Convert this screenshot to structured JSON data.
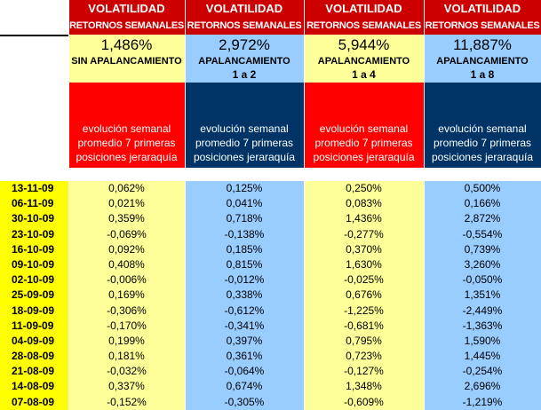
{
  "headers": [
    {
      "vol": "VOLATILIDAD",
      "ret": "RETORNOS SEMANALES",
      "pct": "1,486%",
      "label": "SIN APALANCAMIENTO",
      "sub": "",
      "evo1": "evolución semanal",
      "evo2": "promedio 7 primeras",
      "evo3": "posiciones jeraraquía"
    },
    {
      "vol": "VOLATILIDAD",
      "ret": "RETORNOS SEMANALES",
      "pct": "2,972%",
      "label": "APALANCAMIENTO",
      "sub": "1 a 2",
      "evo1": "evolución semanal",
      "evo2": "promedio 7 primeras",
      "evo3": "posiciones jeraraquía"
    },
    {
      "vol": "VOLATILIDAD",
      "ret": "RETORNOS SEMANALES",
      "pct": "5,944%",
      "label": "APALANCAMIENTO",
      "sub": "1 a 4",
      "evo1": "evolución semanal",
      "evo2": "promedio 7 primeras",
      "evo3": "posiciones jeraraquía"
    },
    {
      "vol": "VOLATILIDAD",
      "ret": "RETORNOS SEMANALES",
      "pct": "11,887%",
      "label": "APALANCAMIENTO",
      "sub": "1 a 8",
      "evo1": "evolución semanal",
      "evo2": "promedio 7 primeras",
      "evo3": "posiciones jeraraquía"
    }
  ],
  "dates": [
    "13-11-09",
    "06-11-09",
    "30-10-09",
    "23-10-09",
    "16-10-09",
    "09-10-09",
    "02-10-09",
    "25-09-09",
    "18-09-09",
    "11-09-09",
    "04-09-09",
    "28-08-09",
    "21-08-09",
    "14-08-09",
    "07-08-09"
  ],
  "columns": [
    [
      "0,062%",
      "0,021%",
      "0,359%",
      "-0,069%",
      "0,092%",
      "0,408%",
      "-0,006%",
      "0,169%",
      "-0,306%",
      "-0,170%",
      "0,199%",
      "0,181%",
      "-0,032%",
      "0,337%",
      "-0,152%"
    ],
    [
      "0,125%",
      "0,041%",
      "0,718%",
      "-0,138%",
      "0,185%",
      "0,815%",
      "-0,012%",
      "0,338%",
      "-0,612%",
      "-0,341%",
      "0,397%",
      "0,361%",
      "-0,064%",
      "0,674%",
      "-0,305%"
    ],
    [
      "0,250%",
      "0,083%",
      "1,436%",
      "-0,277%",
      "0,370%",
      "1,630%",
      "-0,025%",
      "0,676%",
      "-1,225%",
      "-0,681%",
      "0,795%",
      "0,723%",
      "-0,127%",
      "1,348%",
      "-0,609%"
    ],
    [
      "0,500%",
      "0,166%",
      "2,872%",
      "-0,554%",
      "0,739%",
      "3,260%",
      "-0,050%",
      "1,351%",
      "-2,449%",
      "-1,363%",
      "1,590%",
      "1,445%",
      "-0,254%",
      "2,696%",
      "-1,219%"
    ]
  ]
}
